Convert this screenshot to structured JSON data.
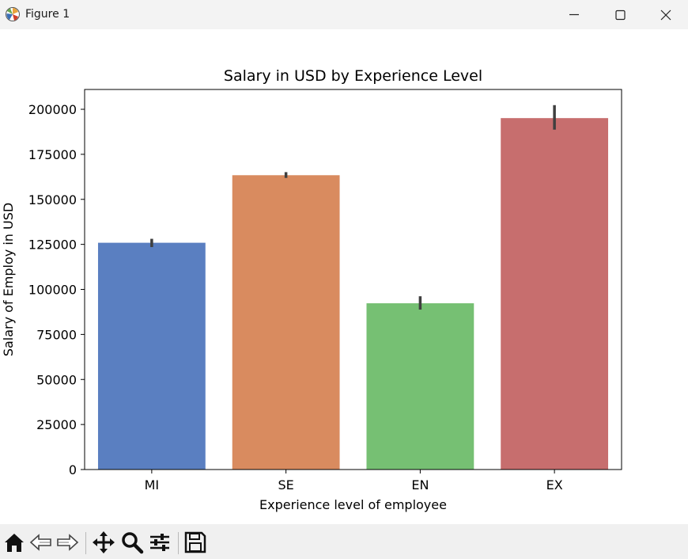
{
  "window": {
    "title": "Figure 1",
    "app_icon": "matplotlib-icon",
    "controls": [
      "minimize-icon",
      "maximize-icon",
      "close-icon"
    ]
  },
  "toolbar": {
    "buttons": [
      "home-icon",
      "back-icon",
      "forward-icon",
      "pan-icon",
      "zoom-icon",
      "configure-subplots-icon",
      "save-icon"
    ]
  },
  "chart_data": {
    "type": "bar",
    "title": "Salary in USD by Experience Level",
    "xlabel": "Experience level of employee",
    "ylabel": "Salary of Employ in USD",
    "categories": [
      "MI",
      "SE",
      "EN",
      "EX"
    ],
    "values": [
      125900,
      163400,
      92300,
      195100
    ],
    "error_bars": [
      {
        "low": 123500,
        "high": 128100
      },
      {
        "low": 161900,
        "high": 165100
      },
      {
        "low": 88800,
        "high": 96200
      },
      {
        "low": 188700,
        "high": 202300
      }
    ],
    "colors": [
      "#5a7fc1",
      "#d98b5f",
      "#76c073",
      "#c76e6e"
    ],
    "error_bar_color": "#3f3f3f",
    "ylim": [
      0,
      211000
    ],
    "yticks": [
      0,
      25000,
      50000,
      75000,
      100000,
      125000,
      150000,
      175000,
      200000
    ],
    "grid": false
  }
}
